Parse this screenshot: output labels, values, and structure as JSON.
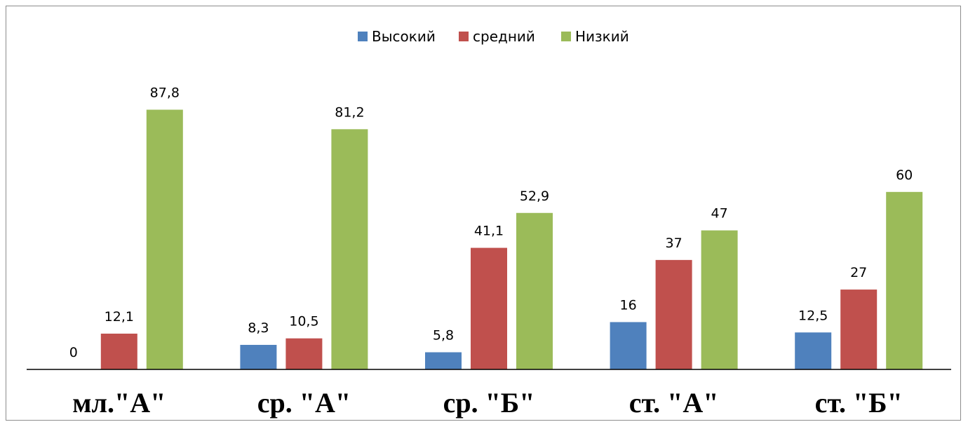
{
  "chart_data": {
    "type": "bar",
    "categories": [
      "мл.\"А\"",
      "ср. \"А\"",
      "ср. \"Б\"",
      "ст. \"А\"",
      "ст. \"Б\""
    ],
    "series": [
      {
        "name": "Высокий",
        "color": "#4f81bd",
        "values": [
          0,
          8.3,
          5.8,
          16,
          12.5
        ],
        "labels": [
          "0",
          "8,3",
          "5,8",
          "16",
          "12,5"
        ]
      },
      {
        "name": "средний",
        "color": "#c0504d",
        "values": [
          12.1,
          10.5,
          41.1,
          37,
          27
        ],
        "labels": [
          "12,1",
          "10,5",
          "41,1",
          "37",
          "27"
        ]
      },
      {
        "name": "Низкий",
        "color": "#9bbb59",
        "values": [
          87.8,
          81.2,
          52.9,
          47,
          60
        ],
        "labels": [
          "87,8",
          "81,2",
          "52,9",
          "47",
          "60"
        ]
      }
    ],
    "ylim": [
      0,
      100
    ],
    "grid": false,
    "legend_position": "top",
    "axis_color": "#000000"
  }
}
